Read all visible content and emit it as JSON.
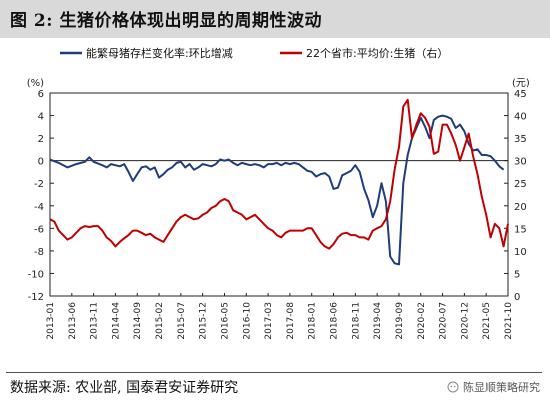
{
  "figure_title": "图 2:  生猪价格体现出明显的周期性波动",
  "source": "数据来源:  农业部, 国泰君安证券研究",
  "watermark": "陈显顺策略研究",
  "chart_data": {
    "type": "line",
    "left_unit": "(%)",
    "right_unit": "(元)",
    "left_ylim": [
      -12,
      6
    ],
    "left_ticks": [
      -12,
      -10,
      -8,
      -6,
      -4,
      -2,
      0,
      2,
      4,
      6
    ],
    "right_ylim": [
      0,
      45
    ],
    "right_ticks": [
      0,
      5,
      10,
      15,
      20,
      25,
      30,
      35,
      40,
      45
    ],
    "x_range": [
      "2013-01",
      "2021-10"
    ],
    "x_ticks": [
      "2013-01",
      "2013-06",
      "2013-11",
      "2014-04",
      "2014-09",
      "2015-02",
      "2015-07",
      "2015-12",
      "2016-05",
      "2016-10",
      "2017-03",
      "2017-08",
      "2018-01",
      "2018-06",
      "2018-11",
      "2019-04",
      "2019-09",
      "2020-02",
      "2020-07",
      "2020-12",
      "2021-05",
      "2021-10"
    ],
    "grid": false,
    "legend_position": "top",
    "series": [
      {
        "name": "能繁母猪存栏变化率:环比增减",
        "axis": "left",
        "color": "#1f3d7a",
        "points": [
          [
            "2013-01",
            0.1
          ],
          [
            "2013-03",
            -0.2
          ],
          [
            "2013-05",
            -0.6
          ],
          [
            "2013-07",
            -0.3
          ],
          [
            "2013-09",
            -0.1
          ],
          [
            "2013-10",
            0.3
          ],
          [
            "2013-11",
            -0.1
          ],
          [
            "2014-01",
            -0.4
          ],
          [
            "2014-02",
            -0.6
          ],
          [
            "2014-03",
            -0.3
          ],
          [
            "2014-05",
            -0.5
          ],
          [
            "2014-06",
            -0.3
          ],
          [
            "2014-07",
            -1.0
          ],
          [
            "2014-08",
            -1.8
          ],
          [
            "2014-09",
            -1.2
          ],
          [
            "2014-10",
            -0.6
          ],
          [
            "2014-11",
            -0.5
          ],
          [
            "2014-12",
            -0.8
          ],
          [
            "2015-01",
            -0.6
          ],
          [
            "2015-02",
            -1.5
          ],
          [
            "2015-03",
            -1.2
          ],
          [
            "2015-04",
            -0.8
          ],
          [
            "2015-05",
            -0.6
          ],
          [
            "2015-06",
            -0.2
          ],
          [
            "2015-07",
            -0.1
          ],
          [
            "2015-08",
            -0.6
          ],
          [
            "2015-09",
            -0.3
          ],
          [
            "2015-10",
            -0.8
          ],
          [
            "2015-11",
            -0.6
          ],
          [
            "2015-12",
            -0.3
          ],
          [
            "2016-01",
            -0.4
          ],
          [
            "2016-02",
            -0.5
          ],
          [
            "2016-03",
            -0.3
          ],
          [
            "2016-04",
            0.1
          ],
          [
            "2016-05",
            0.0
          ],
          [
            "2016-06",
            0.1
          ],
          [
            "2016-07",
            -0.2
          ],
          [
            "2016-08",
            -0.4
          ],
          [
            "2016-09",
            -0.2
          ],
          [
            "2016-10",
            -0.3
          ],
          [
            "2016-11",
            -0.4
          ],
          [
            "2016-12",
            -0.3
          ],
          [
            "2017-01",
            -0.4
          ],
          [
            "2017-02",
            -0.6
          ],
          [
            "2017-03",
            -0.3
          ],
          [
            "2017-04",
            -0.3
          ],
          [
            "2017-05",
            -0.2
          ],
          [
            "2017-06",
            -0.4
          ],
          [
            "2017-07",
            -0.2
          ],
          [
            "2017-08",
            -0.3
          ],
          [
            "2017-09",
            -0.2
          ],
          [
            "2017-10",
            -0.3
          ],
          [
            "2017-11",
            -0.6
          ],
          [
            "2017-12",
            -0.9
          ],
          [
            "2018-01",
            -1.0
          ],
          [
            "2018-02",
            -1.4
          ],
          [
            "2018-03",
            -1.2
          ],
          [
            "2018-04",
            -1.1
          ],
          [
            "2018-05",
            -1.4
          ],
          [
            "2018-06",
            -2.5
          ],
          [
            "2018-07",
            -2.4
          ],
          [
            "2018-08",
            -1.3
          ],
          [
            "2018-09",
            -1.1
          ],
          [
            "2018-10",
            -0.9
          ],
          [
            "2018-11",
            -0.4
          ],
          [
            "2018-12",
            -1.0
          ],
          [
            "2019-01",
            -2.5
          ],
          [
            "2019-02",
            -3.5
          ],
          [
            "2019-03",
            -5.0
          ],
          [
            "2019-04",
            -4.0
          ],
          [
            "2019-05",
            -2.0
          ],
          [
            "2019-06",
            -3.6
          ],
          [
            "2019-07",
            -8.5
          ],
          [
            "2019-08",
            -9.1
          ],
          [
            "2019-09",
            -9.2
          ],
          [
            "2019-10",
            -2.0
          ],
          [
            "2019-11",
            0.5
          ],
          [
            "2019-12",
            2.0
          ],
          [
            "2020-01",
            2.9
          ],
          [
            "2020-02",
            3.8
          ],
          [
            "2020-03",
            3.0
          ],
          [
            "2020-04",
            2.0
          ],
          [
            "2020-05",
            3.6
          ],
          [
            "2020-06",
            3.9
          ],
          [
            "2020-07",
            4.0
          ],
          [
            "2020-08",
            3.9
          ],
          [
            "2020-09",
            3.7
          ],
          [
            "2020-10",
            2.9
          ],
          [
            "2020-11",
            3.2
          ],
          [
            "2020-12",
            2.6
          ],
          [
            "2021-01",
            1.5
          ],
          [
            "2021-02",
            0.9
          ],
          [
            "2021-03",
            1.0
          ],
          [
            "2021-04",
            0.5
          ],
          [
            "2021-05",
            0.5
          ],
          [
            "2021-06",
            0.4
          ],
          [
            "2021-07",
            0.0
          ],
          [
            "2021-08",
            -0.5
          ],
          [
            "2021-09",
            -0.8
          ]
        ]
      },
      {
        "name": "22个省市:平均价:生猪（右）",
        "axis": "right",
        "color": "#c00000",
        "points": [
          [
            "2013-01",
            17.0
          ],
          [
            "2013-02",
            16.5
          ],
          [
            "2013-03",
            14.5
          ],
          [
            "2013-04",
            13.5
          ],
          [
            "2013-05",
            12.5
          ],
          [
            "2013-06",
            13.0
          ],
          [
            "2013-07",
            14.0
          ],
          [
            "2013-08",
            15.0
          ],
          [
            "2013-09",
            15.5
          ],
          [
            "2013-10",
            15.3
          ],
          [
            "2013-11",
            15.5
          ],
          [
            "2013-12",
            15.5
          ],
          [
            "2014-01",
            14.5
          ],
          [
            "2014-02",
            13.0
          ],
          [
            "2014-03",
            12.2
          ],
          [
            "2014-04",
            11.0
          ],
          [
            "2014-05",
            12.0
          ],
          [
            "2014-06",
            12.8
          ],
          [
            "2014-07",
            13.5
          ],
          [
            "2014-08",
            14.5
          ],
          [
            "2014-09",
            14.5
          ],
          [
            "2014-10",
            14.0
          ],
          [
            "2014-11",
            13.5
          ],
          [
            "2014-12",
            13.8
          ],
          [
            "2015-01",
            13.0
          ],
          [
            "2015-02",
            12.5
          ],
          [
            "2015-03",
            12.0
          ],
          [
            "2015-04",
            13.5
          ],
          [
            "2015-05",
            15.0
          ],
          [
            "2015-06",
            16.5
          ],
          [
            "2015-07",
            17.5
          ],
          [
            "2015-08",
            18.0
          ],
          [
            "2015-09",
            17.5
          ],
          [
            "2015-10",
            17.0
          ],
          [
            "2015-11",
            17.2
          ],
          [
            "2015-12",
            18.0
          ],
          [
            "2016-01",
            18.5
          ],
          [
            "2016-02",
            19.5
          ],
          [
            "2016-03",
            20.0
          ],
          [
            "2016-04",
            21.0
          ],
          [
            "2016-05",
            21.5
          ],
          [
            "2016-06",
            21.0
          ],
          [
            "2016-07",
            19.0
          ],
          [
            "2016-08",
            18.5
          ],
          [
            "2016-09",
            18.0
          ],
          [
            "2016-10",
            17.0
          ],
          [
            "2016-11",
            17.5
          ],
          [
            "2016-12",
            18.0
          ],
          [
            "2017-01",
            17.0
          ],
          [
            "2017-02",
            16.0
          ],
          [
            "2017-03",
            15.0
          ],
          [
            "2017-04",
            14.5
          ],
          [
            "2017-05",
            13.5
          ],
          [
            "2017-06",
            13.0
          ],
          [
            "2017-07",
            14.0
          ],
          [
            "2017-08",
            14.5
          ],
          [
            "2017-09",
            14.5
          ],
          [
            "2017-10",
            14.5
          ],
          [
            "2017-11",
            14.5
          ],
          [
            "2017-12",
            15.0
          ],
          [
            "2018-01",
            15.0
          ],
          [
            "2018-02",
            13.5
          ],
          [
            "2018-03",
            12.0
          ],
          [
            "2018-04",
            11.0
          ],
          [
            "2018-05",
            10.5
          ],
          [
            "2018-06",
            11.5
          ],
          [
            "2018-07",
            13.0
          ],
          [
            "2018-08",
            13.8
          ],
          [
            "2018-09",
            14.0
          ],
          [
            "2018-10",
            13.5
          ],
          [
            "2018-11",
            13.5
          ],
          [
            "2018-12",
            13.0
          ],
          [
            "2019-01",
            13.0
          ],
          [
            "2019-02",
            12.5
          ],
          [
            "2019-03",
            14.5
          ],
          [
            "2019-04",
            15.0
          ],
          [
            "2019-05",
            15.5
          ],
          [
            "2019-06",
            17.0
          ],
          [
            "2019-07",
            21.0
          ],
          [
            "2019-08",
            28.0
          ],
          [
            "2019-09",
            33.0
          ],
          [
            "2019-10",
            42.0
          ],
          [
            "2019-11",
            43.5
          ],
          [
            "2019-12",
            35.0
          ],
          [
            "2020-01",
            38.0
          ],
          [
            "2020-02",
            40.5
          ],
          [
            "2020-03",
            39.5
          ],
          [
            "2020-04",
            37.5
          ],
          [
            "2020-05",
            31.5
          ],
          [
            "2020-06",
            32.0
          ],
          [
            "2020-07",
            38.0
          ],
          [
            "2020-08",
            38.0
          ],
          [
            "2020-09",
            36.0
          ],
          [
            "2020-10",
            33.5
          ],
          [
            "2020-11",
            30.0
          ],
          [
            "2020-12",
            33.0
          ],
          [
            "2021-01",
            36.0
          ],
          [
            "2021-02",
            31.0
          ],
          [
            "2021-03",
            27.0
          ],
          [
            "2021-04",
            22.0
          ],
          [
            "2021-05",
            18.0
          ],
          [
            "2021-06",
            13.0
          ],
          [
            "2021-07",
            16.0
          ],
          [
            "2021-08",
            15.0
          ],
          [
            "2021-09",
            11.0
          ],
          [
            "2021-10",
            16.0
          ]
        ]
      }
    ]
  }
}
